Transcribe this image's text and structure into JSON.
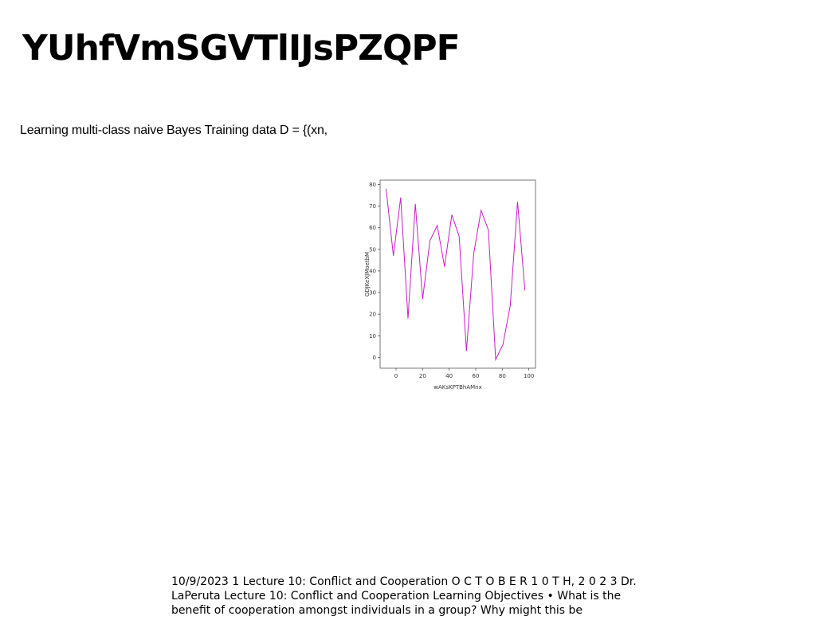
{
  "slide": {
    "title": "YUhfVmSGVTlIJsPZQPF",
    "subtitle": "Learning multi-class naive Bayes Training data D = {(xn,",
    "footer": "10/9/2023 1 Lecture 10: Conflict and Cooperation O C T O B E R 1 0 T H, 2 0 2 3 Dr. LaPeruta Lecture 10: Conflict and Cooperation Learning Objectives • What is the benefit of cooperation amongst individuals in a group? Why might this be"
  },
  "chart_data": {
    "type": "line",
    "title": "",
    "xlabel": "wAKsKPTBhAMnx",
    "ylabel": "GDJKeXJMoetbM",
    "xlim": [
      -12,
      105
    ],
    "ylim": [
      -5,
      82
    ],
    "xticks": [
      0,
      20,
      40,
      60,
      80,
      100
    ],
    "yticks": [
      0,
      10,
      20,
      30,
      40,
      50,
      60,
      70,
      80
    ],
    "grid": false,
    "color": "#c61fc6",
    "series": [
      {
        "x": [
          -7.5,
          -2,
          3.5,
          9,
          14.5,
          20,
          25.5,
          31,
          36.5,
          42,
          47.5,
          53,
          58.5,
          64,
          69.5,
          75,
          80.5,
          86,
          91.5,
          97
        ],
        "values": [
          78,
          47,
          74,
          18,
          71,
          27,
          54,
          61,
          42,
          66,
          56,
          3,
          48,
          68,
          59,
          -1,
          6,
          24,
          72,
          31
        ]
      }
    ]
  }
}
